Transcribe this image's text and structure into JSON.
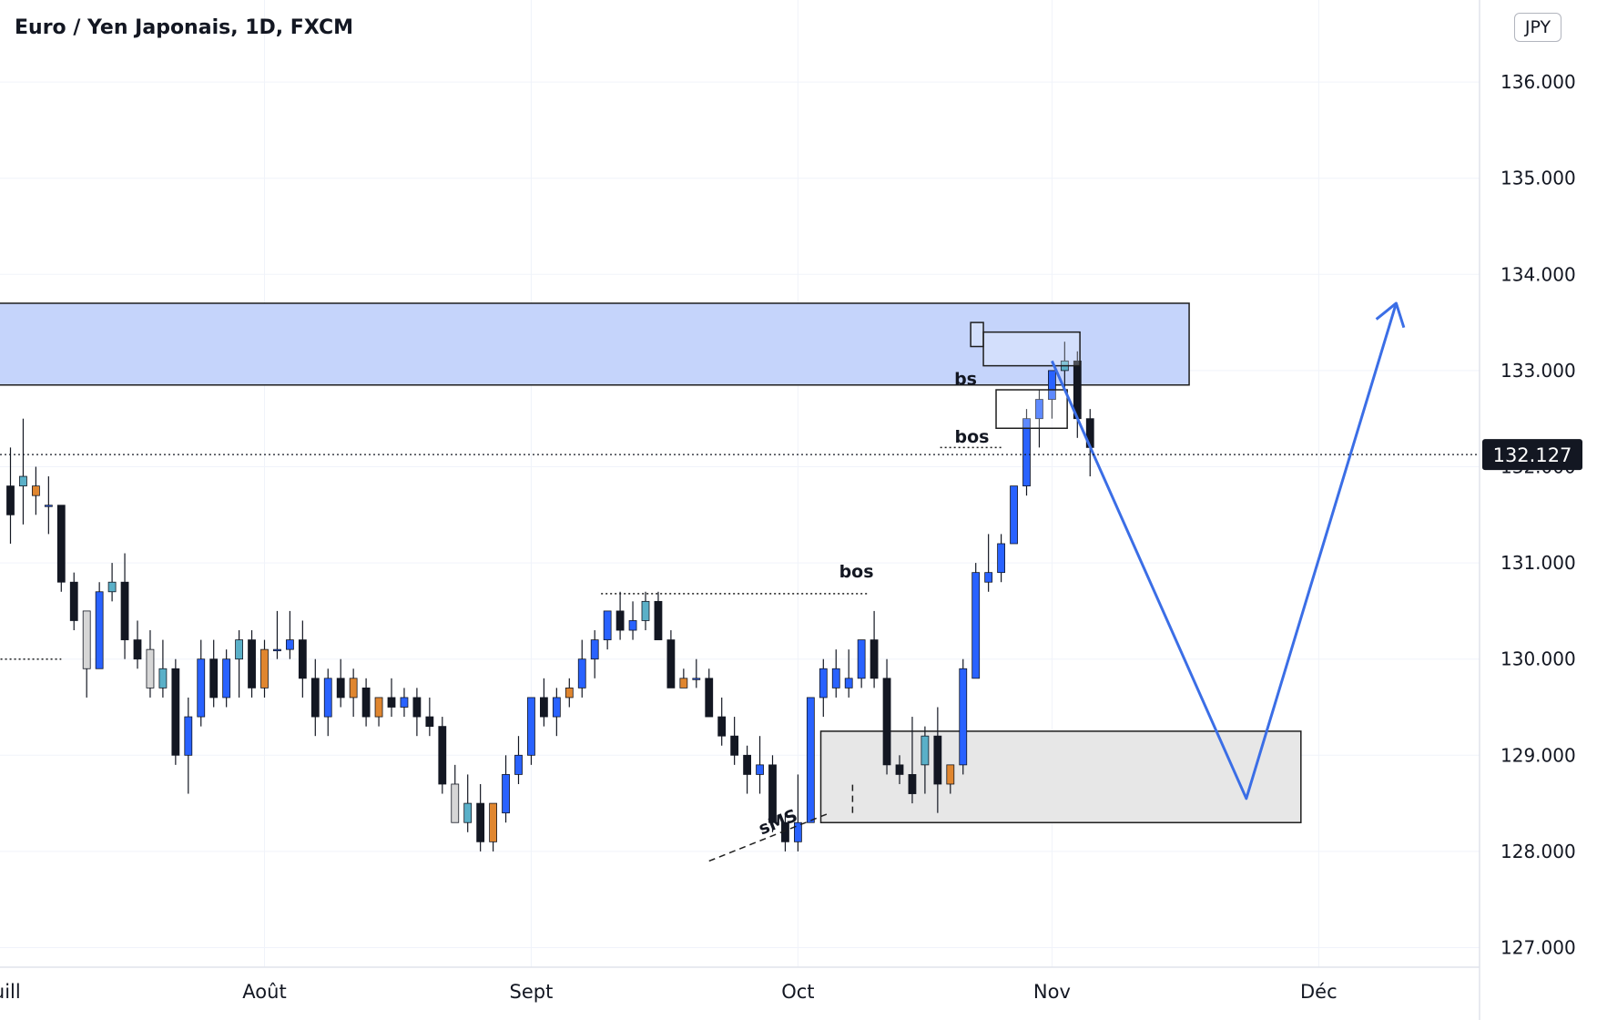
{
  "title": "Euro / Yen Japonais, 1D, FXCM",
  "currency_badge": "JPY",
  "colors": {
    "bull": "#2962ff",
    "bear": "#131722",
    "bull_highlight": "#5ab0c8",
    "bear_highlight": "#e0862f",
    "doji": "#d6d6d6",
    "supply_zone": "#c5d4fb",
    "demand_zone": "#e7e7e7",
    "projection": "#3b6ee6",
    "grid": "#f0f3fa"
  },
  "chart_data": {
    "type": "candlestick",
    "y_axis": {
      "min": 127.0,
      "max": 136.0,
      "ticks": [
        "127.000",
        "128.000",
        "129.000",
        "130.000",
        "131.000",
        "132.000",
        "133.000",
        "134.000",
        "135.000",
        "136.000"
      ]
    },
    "x_axis": {
      "labels": [
        {
          "label": "uill",
          "bar": -0.3
        },
        {
          "label": "Août",
          "bar": 20
        },
        {
          "label": "Sept",
          "bar": 41
        },
        {
          "label": "Oct",
          "bar": 62
        },
        {
          "label": "Nov",
          "bar": 82
        },
        {
          "label": "Déc",
          "bar": 103
        }
      ]
    },
    "last_price": "132.127",
    "candles": [
      {
        "o": 131.8,
        "h": 132.2,
        "l": 131.2,
        "c": 131.5
      },
      {
        "o": 131.9,
        "h": 132.5,
        "l": 131.4,
        "c": 131.8,
        "color": "bull_highlight"
      },
      {
        "o": 131.8,
        "h": 132.0,
        "l": 131.5,
        "c": 131.7,
        "color": "bear_highlight"
      },
      {
        "o": 131.6,
        "h": 131.9,
        "l": 131.3,
        "c": 131.6
      },
      {
        "o": 131.6,
        "h": 131.6,
        "l": 130.7,
        "c": 130.8
      },
      {
        "o": 130.8,
        "h": 130.9,
        "l": 130.3,
        "c": 130.4
      },
      {
        "o": 130.5,
        "h": 130.5,
        "l": 129.6,
        "c": 129.9,
        "color": "doji"
      },
      {
        "o": 129.9,
        "h": 130.8,
        "l": 129.9,
        "c": 130.7,
        "color": "bull"
      },
      {
        "o": 130.7,
        "h": 131.0,
        "l": 130.6,
        "c": 130.8,
        "color": "bull_highlight"
      },
      {
        "o": 130.8,
        "h": 131.1,
        "l": 130.0,
        "c": 130.2
      },
      {
        "o": 130.2,
        "h": 130.4,
        "l": 129.9,
        "c": 130.0
      },
      {
        "o": 130.1,
        "h": 130.3,
        "l": 129.6,
        "c": 129.7,
        "color": "doji"
      },
      {
        "o": 129.7,
        "h": 130.2,
        "l": 129.6,
        "c": 129.9,
        "color": "bull_highlight"
      },
      {
        "o": 129.9,
        "h": 130.0,
        "l": 128.9,
        "c": 129.0
      },
      {
        "o": 129.0,
        "h": 129.6,
        "l": 128.6,
        "c": 129.4,
        "color": "bull"
      },
      {
        "o": 129.4,
        "h": 130.2,
        "l": 129.3,
        "c": 130.0,
        "color": "bull"
      },
      {
        "o": 130.0,
        "h": 130.2,
        "l": 129.5,
        "c": 129.6
      },
      {
        "o": 129.6,
        "h": 130.1,
        "l": 129.5,
        "c": 130.0,
        "color": "bull"
      },
      {
        "o": 130.0,
        "h": 130.3,
        "l": 129.6,
        "c": 130.2,
        "color": "bull_highlight"
      },
      {
        "o": 130.2,
        "h": 130.3,
        "l": 129.6,
        "c": 129.7
      },
      {
        "o": 129.7,
        "h": 130.2,
        "l": 129.6,
        "c": 130.1,
        "color": "bear_highlight"
      },
      {
        "o": 130.1,
        "h": 130.5,
        "l": 130.0,
        "c": 130.1
      },
      {
        "o": 130.1,
        "h": 130.5,
        "l": 130.0,
        "c": 130.2,
        "color": "bull"
      },
      {
        "o": 130.2,
        "h": 130.4,
        "l": 129.6,
        "c": 129.8
      },
      {
        "o": 129.8,
        "h": 130.0,
        "l": 129.2,
        "c": 129.4
      },
      {
        "o": 129.4,
        "h": 129.9,
        "l": 129.2,
        "c": 129.8,
        "color": "bull"
      },
      {
        "o": 129.8,
        "h": 130.0,
        "l": 129.5,
        "c": 129.6
      },
      {
        "o": 129.6,
        "h": 129.9,
        "l": 129.4,
        "c": 129.8,
        "color": "bear_highlight"
      },
      {
        "o": 129.7,
        "h": 129.8,
        "l": 129.3,
        "c": 129.4
      },
      {
        "o": 129.4,
        "h": 129.6,
        "l": 129.3,
        "c": 129.6,
        "color": "bear_highlight"
      },
      {
        "o": 129.6,
        "h": 129.8,
        "l": 129.4,
        "c": 129.5
      },
      {
        "o": 129.5,
        "h": 129.7,
        "l": 129.4,
        "c": 129.6,
        "color": "bull"
      },
      {
        "o": 129.6,
        "h": 129.7,
        "l": 129.2,
        "c": 129.4
      },
      {
        "o": 129.4,
        "h": 129.6,
        "l": 129.2,
        "c": 129.3
      },
      {
        "o": 129.3,
        "h": 129.4,
        "l": 128.6,
        "c": 128.7
      },
      {
        "o": 128.7,
        "h": 128.9,
        "l": 128.3,
        "c": 128.3,
        "color": "doji"
      },
      {
        "o": 128.3,
        "h": 128.8,
        "l": 128.2,
        "c": 128.5,
        "color": "bull_highlight"
      },
      {
        "o": 128.5,
        "h": 128.7,
        "l": 128.0,
        "c": 128.1
      },
      {
        "o": 128.1,
        "h": 128.5,
        "l": 128.0,
        "c": 128.5,
        "color": "bear_highlight"
      },
      {
        "o": 128.4,
        "h": 129.0,
        "l": 128.3,
        "c": 128.8,
        "color": "bull"
      },
      {
        "o": 128.8,
        "h": 129.2,
        "l": 128.7,
        "c": 129.0,
        "color": "bull"
      },
      {
        "o": 129.0,
        "h": 129.6,
        "l": 128.9,
        "c": 129.6,
        "color": "bull"
      },
      {
        "o": 129.6,
        "h": 129.8,
        "l": 129.3,
        "c": 129.4
      },
      {
        "o": 129.4,
        "h": 129.7,
        "l": 129.2,
        "c": 129.6,
        "color": "bull"
      },
      {
        "o": 129.6,
        "h": 129.8,
        "l": 129.5,
        "c": 129.7,
        "color": "bear_highlight"
      },
      {
        "o": 129.7,
        "h": 130.2,
        "l": 129.6,
        "c": 130.0,
        "color": "bull"
      },
      {
        "o": 130.0,
        "h": 130.3,
        "l": 129.8,
        "c": 130.2,
        "color": "bull"
      },
      {
        "o": 130.2,
        "h": 130.5,
        "l": 130.1,
        "c": 130.5,
        "color": "bull"
      },
      {
        "o": 130.5,
        "h": 130.7,
        "l": 130.2,
        "c": 130.3
      },
      {
        "o": 130.3,
        "h": 130.6,
        "l": 130.2,
        "c": 130.4,
        "color": "bull"
      },
      {
        "o": 130.4,
        "h": 130.7,
        "l": 130.3,
        "c": 130.6,
        "color": "bull_highlight"
      },
      {
        "o": 130.6,
        "h": 130.7,
        "l": 130.2,
        "c": 130.2
      },
      {
        "o": 130.2,
        "h": 130.3,
        "l": 129.7,
        "c": 129.7
      },
      {
        "o": 129.8,
        "h": 129.9,
        "l": 129.7,
        "c": 129.7,
        "color": "bear_highlight"
      },
      {
        "o": 129.8,
        "h": 130.0,
        "l": 129.7,
        "c": 129.8,
        "color": "bull"
      },
      {
        "o": 129.8,
        "h": 129.9,
        "l": 129.4,
        "c": 129.4
      },
      {
        "o": 129.4,
        "h": 129.6,
        "l": 129.1,
        "c": 129.2
      },
      {
        "o": 129.2,
        "h": 129.4,
        "l": 128.9,
        "c": 129.0
      },
      {
        "o": 129.0,
        "h": 129.1,
        "l": 128.6,
        "c": 128.8
      },
      {
        "o": 128.8,
        "h": 129.2,
        "l": 128.6,
        "c": 128.9
      },
      {
        "o": 128.9,
        "h": 129.0,
        "l": 128.2,
        "c": 128.3
      },
      {
        "o": 128.3,
        "h": 128.4,
        "l": 128.0,
        "c": 128.1
      },
      {
        "o": 128.1,
        "h": 128.8,
        "l": 128.0,
        "c": 128.3,
        "color": "bull"
      },
      {
        "o": 128.3,
        "h": 129.6,
        "l": 128.3,
        "c": 129.6,
        "color": "bull"
      },
      {
        "o": 129.6,
        "h": 130.0,
        "l": 129.4,
        "c": 129.9,
        "color": "bull"
      },
      {
        "o": 129.9,
        "h": 130.1,
        "l": 129.6,
        "c": 129.7,
        "color": "bull"
      },
      {
        "o": 129.7,
        "h": 130.1,
        "l": 129.6,
        "c": 129.8
      },
      {
        "o": 129.8,
        "h": 130.2,
        "l": 129.7,
        "c": 130.2,
        "color": "bull"
      },
      {
        "o": 130.2,
        "h": 130.5,
        "l": 129.7,
        "c": 129.8
      },
      {
        "o": 129.8,
        "h": 130.0,
        "l": 128.8,
        "c": 128.9
      },
      {
        "o": 128.9,
        "h": 129.0,
        "l": 128.7,
        "c": 128.8
      },
      {
        "o": 128.8,
        "h": 129.4,
        "l": 128.5,
        "c": 128.6
      },
      {
        "o": 128.9,
        "h": 129.3,
        "l": 128.6,
        "c": 129.2,
        "color": "bull_highlight"
      },
      {
        "o": 129.2,
        "h": 129.5,
        "l": 128.4,
        "c": 128.7
      },
      {
        "o": 128.7,
        "h": 128.9,
        "l": 128.6,
        "c": 128.9,
        "color": "bear_highlight"
      },
      {
        "o": 128.9,
        "h": 130.0,
        "l": 128.8,
        "c": 129.9,
        "color": "bull"
      },
      {
        "o": 129.8,
        "h": 131.0,
        "l": 129.8,
        "c": 130.9,
        "color": "bull"
      },
      {
        "o": 130.8,
        "h": 131.3,
        "l": 130.7,
        "c": 130.9,
        "color": "bull"
      },
      {
        "o": 130.9,
        "h": 131.3,
        "l": 130.8,
        "c": 131.2,
        "color": "bull"
      },
      {
        "o": 131.2,
        "h": 131.8,
        "l": 131.2,
        "c": 131.8,
        "color": "bull"
      },
      {
        "o": 131.8,
        "h": 132.6,
        "l": 131.7,
        "c": 132.5,
        "color": "bull"
      },
      {
        "o": 132.5,
        "h": 132.8,
        "l": 132.2,
        "c": 132.7,
        "color": "bull"
      },
      {
        "o": 132.7,
        "h": 133.0,
        "l": 132.5,
        "c": 133.0,
        "color": "bull"
      },
      {
        "o": 133.0,
        "h": 133.3,
        "l": 132.8,
        "c": 133.1,
        "color": "bull_highlight"
      },
      {
        "o": 133.1,
        "h": 133.2,
        "l": 132.3,
        "c": 132.5
      },
      {
        "o": 132.5,
        "h": 132.6,
        "l": 131.9,
        "c": 132.2
      }
    ],
    "supply_zone": {
      "y_low": 132.85,
      "y_high": 133.7,
      "bar_start": -1.5,
      "bar_end": 92.8
    },
    "demand_zone": {
      "y_low": 128.3,
      "y_high": 129.25,
      "bar_start": 63.8,
      "bar_end": 101.6
    },
    "small_boxes": [
      {
        "bar_start": 75.6,
        "bar_end": 76.6,
        "y_low": 133.25,
        "y_high": 133.5
      },
      {
        "bar_start": 76.6,
        "bar_end": 84.2,
        "y_low": 133.05,
        "y_high": 133.4
      },
      {
        "bar_start": 77.6,
        "bar_end": 83.2,
        "y_low": 132.4,
        "y_high": 132.8
      }
    ],
    "annotations": [
      {
        "text": "bos",
        "bar": 66.6,
        "y": 130.85
      },
      {
        "text": "bos",
        "bar": 75.7,
        "y": 132.25
      },
      {
        "text": "bs",
        "bar": 75.2,
        "y": 132.85
      },
      {
        "text": "sMS",
        "bar": 60.6,
        "y": 128.25,
        "rotate": -22
      }
    ],
    "bos_lines": [
      {
        "bar_start": 46.5,
        "bar_end": 67.6,
        "y": 130.68
      },
      {
        "bar_start": 73.2,
        "bar_end": 78.0,
        "y": 132.2
      },
      {
        "bar_start": -1.5,
        "bar_end": 4.0,
        "y": 130.0
      }
    ],
    "trend_lines": [
      {
        "from_bar": 55.0,
        "from_y": 127.9,
        "to_bar": 64.5,
        "to_y": 128.4
      },
      {
        "from_bar": 66.3,
        "from_y": 128.4,
        "to_bar": 66.3,
        "to_y": 128.7
      }
    ],
    "projection_path": [
      {
        "bar": 82.0,
        "y": 133.1
      },
      {
        "bar": 97.3,
        "y": 128.55
      },
      {
        "bar": 109.1,
        "y": 133.7
      }
    ]
  }
}
